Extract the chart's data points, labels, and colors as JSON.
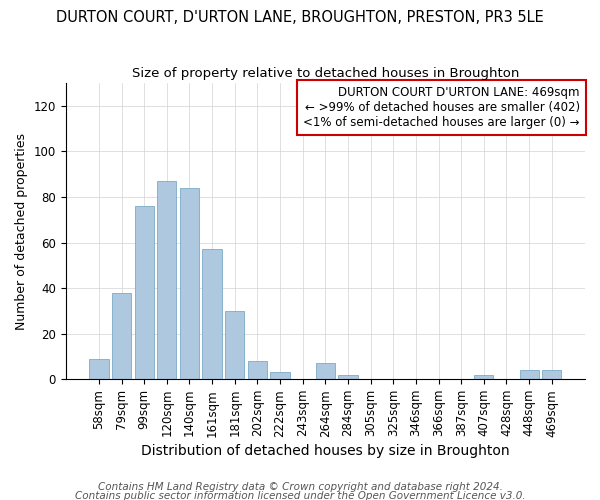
{
  "title": "DURTON COURT, D'URTON LANE, BROUGHTON, PRESTON, PR3 5LE",
  "subtitle": "Size of property relative to detached houses in Broughton",
  "xlabel": "Distribution of detached houses by size in Broughton",
  "ylabel": "Number of detached properties",
  "categories": [
    "58sqm",
    "79sqm",
    "99sqm",
    "120sqm",
    "140sqm",
    "161sqm",
    "181sqm",
    "202sqm",
    "222sqm",
    "243sqm",
    "264sqm",
    "284sqm",
    "305sqm",
    "325sqm",
    "346sqm",
    "366sqm",
    "387sqm",
    "407sqm",
    "428sqm",
    "448sqm",
    "469sqm"
  ],
  "values": [
    9,
    38,
    76,
    87,
    84,
    57,
    30,
    8,
    3,
    0,
    7,
    2,
    0,
    0,
    0,
    0,
    0,
    2,
    0,
    4,
    4
  ],
  "bar_color_normal": "#aec8e0",
  "bar_color_highlight": "#aec8e0",
  "highlight_index": 20,
  "bar_edge_color": "#6a9fc0",
  "legend_box_color": "#cc0000",
  "legend_lines": [
    "DURTON COURT D'URTON LANE: 469sqm",
    "← >99% of detached houses are smaller (402)",
    "<1% of semi-detached houses are larger (0) →"
  ],
  "footnote1": "Contains HM Land Registry data © Crown copyright and database right 2024.",
  "footnote2": "Contains public sector information licensed under the Open Government Licence v3.0.",
  "ylim": [
    0,
    130
  ],
  "yticks": [
    0,
    20,
    40,
    60,
    80,
    100,
    120
  ],
  "title_fontsize": 10.5,
  "subtitle_fontsize": 9.5,
  "xlabel_fontsize": 10,
  "ylabel_fontsize": 9,
  "tick_fontsize": 8.5,
  "legend_fontsize": 8.5,
  "footnote_fontsize": 7.5
}
